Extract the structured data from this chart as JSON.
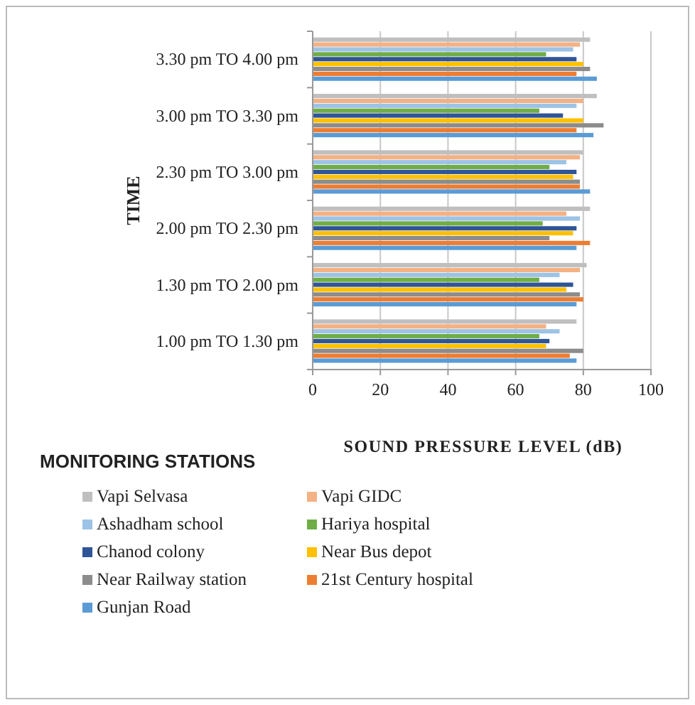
{
  "chart_data": {
    "type": "bar",
    "orientation": "horizontal",
    "ylabel": "TIME",
    "xlabel": "SOUND PRESSURE LEVEL (dB)",
    "legend_title": "MONITORING STATIONS",
    "categories": [
      "3.30 pm TO 4.00 pm",
      "3.00 pm TO 3.30 pm",
      "2.30 pm TO 3.00 pm",
      "2.00 pm TO 2.30 pm",
      "1.30 pm TO 2.00 pm",
      "1.00 pm TO 1.30 pm"
    ],
    "xlim": [
      0,
      100
    ],
    "xticks": [
      0,
      20,
      40,
      60,
      80,
      100
    ],
    "grid": "x",
    "legend": "bottom",
    "series": [
      {
        "name": "Vapi Selvasa",
        "color": "#bfbfbf",
        "values": [
          82,
          84,
          80,
          82,
          81,
          78
        ]
      },
      {
        "name": "Vapi GIDC",
        "color": "#f4b183",
        "values": [
          79,
          80,
          79,
          75,
          79,
          69
        ]
      },
      {
        "name": "Ashadham school",
        "color": "#9dc3e6",
        "values": [
          77,
          78,
          75,
          79,
          73,
          73
        ]
      },
      {
        "name": "Hariya hospital",
        "color": "#70ad47",
        "values": [
          69,
          67,
          70,
          68,
          67,
          67
        ]
      },
      {
        "name": "Chanod colony",
        "color": "#2f5597",
        "values": [
          78,
          74,
          78,
          78,
          77,
          70
        ]
      },
      {
        "name": "Near  Bus depot",
        "color": "#ffc000",
        "values": [
          80,
          80,
          77,
          77,
          75,
          69
        ]
      },
      {
        "name": "Near Railway station",
        "color": "#8c8c8c",
        "values": [
          82,
          86,
          79,
          70,
          79,
          80
        ]
      },
      {
        "name": "21st Century hospital",
        "color": "#ed7d31",
        "values": [
          78,
          78,
          79,
          82,
          80,
          76
        ]
      },
      {
        "name": "Gunjan Road",
        "color": "#5b9bd5",
        "values": [
          84,
          83,
          82,
          78,
          78,
          78
        ]
      }
    ]
  }
}
